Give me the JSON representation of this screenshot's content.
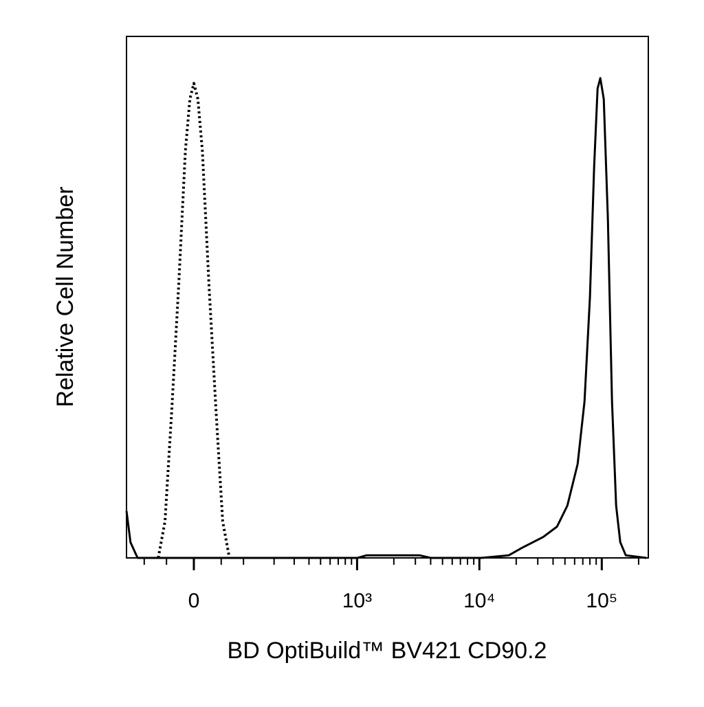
{
  "chart_data": {
    "type": "histogram-overlay",
    "xlabel": "BD OptiBuild™ BV421 CD90.2",
    "ylabel": "Relative Cell Number",
    "xscale": "biexponential",
    "xlim": [
      -152,
      240000
    ],
    "ylim": [
      0,
      100
    ],
    "xticks": [
      0,
      {
        "value": 1000,
        "label": "10³"
      },
      {
        "value": 10000,
        "label": "10⁴"
      },
      {
        "value": 100000,
        "label": "10⁵"
      }
    ],
    "xminor_ticks": [
      -100,
      -50,
      50,
      100,
      200,
      300,
      400,
      500,
      600,
      700,
      800,
      900,
      2000,
      3000,
      4000,
      5000,
      6000,
      7000,
      8000,
      9000,
      20000,
      30000,
      40000,
      50000,
      60000,
      70000,
      80000,
      90000,
      200000
    ],
    "series": [
      {
        "color": "#000000",
        "dash": "dotted",
        "x": [
          -67,
          -53,
          -40,
          -27,
          -15,
          -7,
          0,
          7,
          15,
          27,
          40,
          53,
          67
        ],
        "values": [
          0,
          7,
          28,
          52,
          78,
          88,
          91,
          88,
          78,
          52,
          28,
          7,
          0
        ]
      },
      {
        "color": "#000000",
        "dash": "solid",
        "x": [
          -152,
          -139,
          -118,
          1010,
          1200,
          3236,
          4000,
          10380,
          17400,
          22560,
          33230,
          43060,
          52300,
          63500,
          72270,
          80100,
          86600,
          92400,
          97350,
          103800,
          112200,
          121300,
          131000,
          141600,
          157100,
          231200
        ],
        "values": [
          9,
          3,
          0,
          0,
          0.5,
          0.5,
          0,
          0,
          0.5,
          2,
          4,
          6,
          10,
          18,
          30,
          50,
          75,
          90,
          92,
          88,
          65,
          30,
          10,
          3,
          0.5,
          0
        ]
      }
    ]
  }
}
